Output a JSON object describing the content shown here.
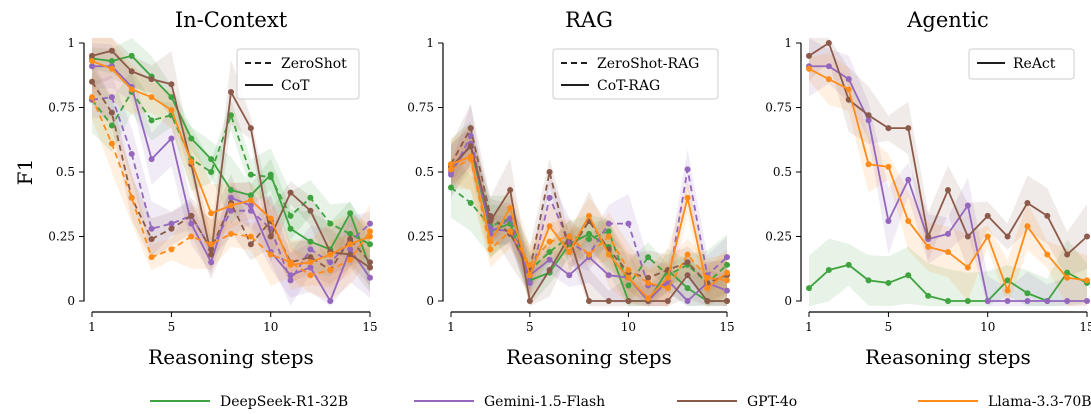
{
  "colors": {
    "DeepSeek-R1-32B": "#3fa33f",
    "Gemini-1.5-Flash": "#9467bd",
    "GPT-4o": "#8c5a4a",
    "Llama-3.3-70B": "#ff8c1a"
  },
  "legend": {
    "models": [
      "DeepSeek-R1-32B",
      "Gemini-1.5-Flash",
      "GPT-4o",
      "Llama-3.3-70B"
    ],
    "placement": "bottom"
  },
  "chart_data": [
    {
      "type": "line",
      "title": "In-Context",
      "xlabel": "Reasoning steps",
      "ylabel": "F1",
      "xlim": [
        1,
        15
      ],
      "ylim": [
        0,
        1
      ],
      "xticks": [
        1,
        5,
        10,
        15
      ],
      "yticks": [
        0,
        0.25,
        0.5,
        0.75,
        1
      ],
      "ytick_labels": [
        "0",
        "0.25",
        "0.5",
        "0.75",
        "1"
      ],
      "legend_placement": "top-right",
      "legend": [
        {
          "label": "ZeroShot",
          "style": "dashed"
        },
        {
          "label": "CoT",
          "style": "solid"
        }
      ],
      "x": [
        1,
        2,
        3,
        4,
        5,
        6,
        7,
        8,
        9,
        10,
        11,
        12,
        13,
        14,
        15
      ],
      "series": [
        {
          "model": "DeepSeek-R1-32B",
          "style": "solid",
          "values": [
            0.94,
            0.93,
            0.95,
            0.87,
            0.79,
            0.63,
            0.55,
            0.43,
            0.41,
            0.49,
            0.28,
            0.23,
            0.2,
            0.34,
            0.13
          ]
        },
        {
          "model": "DeepSeek-R1-32B",
          "style": "dashed",
          "values": [
            0.78,
            0.68,
            0.81,
            0.7,
            0.72,
            0.55,
            0.5,
            0.72,
            0.49,
            0.48,
            0.33,
            0.4,
            0.3,
            0.26,
            0.22
          ]
        },
        {
          "model": "Gemini-1.5-Flash",
          "style": "solid",
          "values": [
            0.91,
            0.91,
            0.83,
            0.55,
            0.63,
            0.3,
            0.15,
            0.4,
            0.37,
            0.19,
            0.1,
            0.13,
            0.0,
            0.2,
            0.09
          ]
        },
        {
          "model": "Gemini-1.5-Flash",
          "style": "dashed",
          "values": [
            0.78,
            0.79,
            0.57,
            0.28,
            0.3,
            0.33,
            0.2,
            0.35,
            0.35,
            0.28,
            0.08,
            0.2,
            0.15,
            0.23,
            0.3
          ]
        },
        {
          "model": "GPT-4o",
          "style": "solid",
          "values": [
            0.95,
            0.97,
            0.89,
            0.86,
            0.84,
            0.53,
            0.18,
            0.81,
            0.67,
            0.25,
            0.42,
            0.35,
            0.19,
            0.18,
            0.13
          ]
        },
        {
          "model": "GPT-4o",
          "style": "dashed",
          "values": [
            0.85,
            0.73,
            0.4,
            0.24,
            0.28,
            0.33,
            0.2,
            0.38,
            0.22,
            0.31,
            0.15,
            0.17,
            0.12,
            0.24,
            0.15
          ]
        },
        {
          "model": "Llama-3.3-70B",
          "style": "solid",
          "values": [
            0.93,
            0.9,
            0.82,
            0.79,
            0.74,
            0.54,
            0.34,
            0.37,
            0.39,
            0.32,
            0.14,
            0.15,
            0.18,
            0.22,
            0.25
          ]
        },
        {
          "model": "Llama-3.3-70B",
          "style": "dashed",
          "values": [
            0.79,
            0.61,
            0.4,
            0.17,
            0.2,
            0.25,
            0.22,
            0.26,
            0.25,
            0.18,
            0.15,
            0.1,
            0.12,
            0.16,
            0.27
          ]
        }
      ]
    },
    {
      "type": "line",
      "title": "RAG",
      "xlabel": "Reasoning steps",
      "ylabel": "",
      "xlim": [
        1,
        15
      ],
      "ylim": [
        0,
        1
      ],
      "xticks": [
        1,
        5,
        10,
        15
      ],
      "yticks": [
        0,
        0.25,
        0.5,
        0.75,
        1
      ],
      "ytick_labels": [
        "0",
        "0.25",
        "0.5",
        "0.75",
        "1"
      ],
      "legend_placement": "top-right",
      "legend": [
        {
          "label": "ZeroShot-RAG",
          "style": "dashed"
        },
        {
          "label": "CoT-RAG",
          "style": "solid"
        }
      ],
      "x": [
        1,
        2,
        3,
        4,
        5,
        6,
        7,
        8,
        9,
        10,
        11,
        12,
        13,
        14,
        15
      ],
      "series": [
        {
          "model": "DeepSeek-R1-32B",
          "style": "solid",
          "values": [
            0.52,
            0.6,
            0.27,
            0.3,
            0.08,
            0.11,
            0.22,
            0.26,
            0.21,
            0.0,
            0.0,
            0.12,
            0.05,
            0.0,
            0.0
          ]
        },
        {
          "model": "DeepSeek-R1-32B",
          "style": "dashed",
          "values": [
            0.44,
            0.38,
            0.29,
            0.32,
            0.12,
            0.19,
            0.25,
            0.24,
            0.27,
            0.06,
            0.17,
            0.1,
            0.14,
            0.07,
            0.14
          ]
        },
        {
          "model": "Gemini-1.5-Flash",
          "style": "solid",
          "values": [
            0.5,
            0.61,
            0.28,
            0.27,
            0.1,
            0.16,
            0.1,
            0.17,
            0.1,
            0.09,
            0.0,
            0.08,
            0.0,
            0.07,
            0.04
          ]
        },
        {
          "model": "Gemini-1.5-Flash",
          "style": "dashed",
          "values": [
            0.49,
            0.64,
            0.26,
            0.32,
            0.07,
            0.4,
            0.23,
            0.18,
            0.3,
            0.3,
            0.06,
            0.06,
            0.51,
            0.1,
            0.17
          ]
        },
        {
          "model": "GPT-4o",
          "style": "solid",
          "values": [
            0.52,
            0.6,
            0.31,
            0.43,
            0.0,
            0.12,
            0.25,
            0.0,
            0.0,
            0.0,
            0.0,
            0.0,
            0.1,
            0.0,
            0.0
          ]
        },
        {
          "model": "GPT-4o",
          "style": "dashed",
          "values": [
            0.53,
            0.67,
            0.33,
            0.26,
            0.12,
            0.5,
            0.19,
            0.31,
            0.2,
            0.11,
            0.09,
            0.12,
            0.15,
            0.07,
            0.1
          ]
        },
        {
          "model": "Llama-3.3-70B",
          "style": "solid",
          "values": [
            0.53,
            0.56,
            0.23,
            0.36,
            0.1,
            0.29,
            0.19,
            0.33,
            0.18,
            0.09,
            0.01,
            0.09,
            0.4,
            0.05,
            0.11
          ]
        },
        {
          "model": "Llama-3.3-70B",
          "style": "dashed",
          "values": [
            0.51,
            0.55,
            0.2,
            0.27,
            0.14,
            0.23,
            0.25,
            0.18,
            0.25,
            0.12,
            0.07,
            0.05,
            0.18,
            0.09,
            0.08
          ]
        }
      ]
    },
    {
      "type": "line",
      "title": "Agentic",
      "xlabel": "Reasoning steps",
      "ylabel": "",
      "xlim": [
        1,
        15
      ],
      "ylim": [
        0,
        1
      ],
      "xticks": [
        1,
        5,
        10,
        15
      ],
      "yticks": [
        0,
        0.25,
        0.5,
        0.75,
        1
      ],
      "ytick_labels": [
        "0",
        "0.25",
        "0.5",
        "0.75",
        "1"
      ],
      "legend_placement": "top-right",
      "legend": [
        {
          "label": "ReAct",
          "style": "solid"
        }
      ],
      "x": [
        1,
        2,
        3,
        4,
        5,
        6,
        7,
        8,
        9,
        10,
        11,
        12,
        13,
        14,
        15
      ],
      "series": [
        {
          "model": "DeepSeek-R1-32B",
          "style": "solid",
          "values": [
            0.05,
            0.12,
            0.14,
            0.08,
            0.07,
            0.1,
            0.02,
            0.0,
            0.0,
            0.0,
            0.08,
            0.03,
            0.0,
            0.11,
            0.07
          ]
        },
        {
          "model": "Gemini-1.5-Flash",
          "style": "solid",
          "values": [
            0.91,
            0.91,
            0.86,
            0.7,
            0.31,
            0.47,
            0.24,
            0.26,
            0.37,
            0.0,
            0.0,
            0.0,
            0.0,
            0.0,
            0.0
          ]
        },
        {
          "model": "GPT-4o",
          "style": "solid",
          "values": [
            0.95,
            1.0,
            0.78,
            0.72,
            0.67,
            0.67,
            0.25,
            0.43,
            0.25,
            0.33,
            0.25,
            0.38,
            0.33,
            0.18,
            0.25
          ]
        },
        {
          "model": "Llama-3.3-70B",
          "style": "solid",
          "values": [
            0.9,
            0.86,
            0.82,
            0.53,
            0.52,
            0.31,
            0.21,
            0.19,
            0.13,
            0.25,
            0.04,
            0.29,
            0.18,
            0.09,
            0.08
          ]
        }
      ]
    }
  ]
}
